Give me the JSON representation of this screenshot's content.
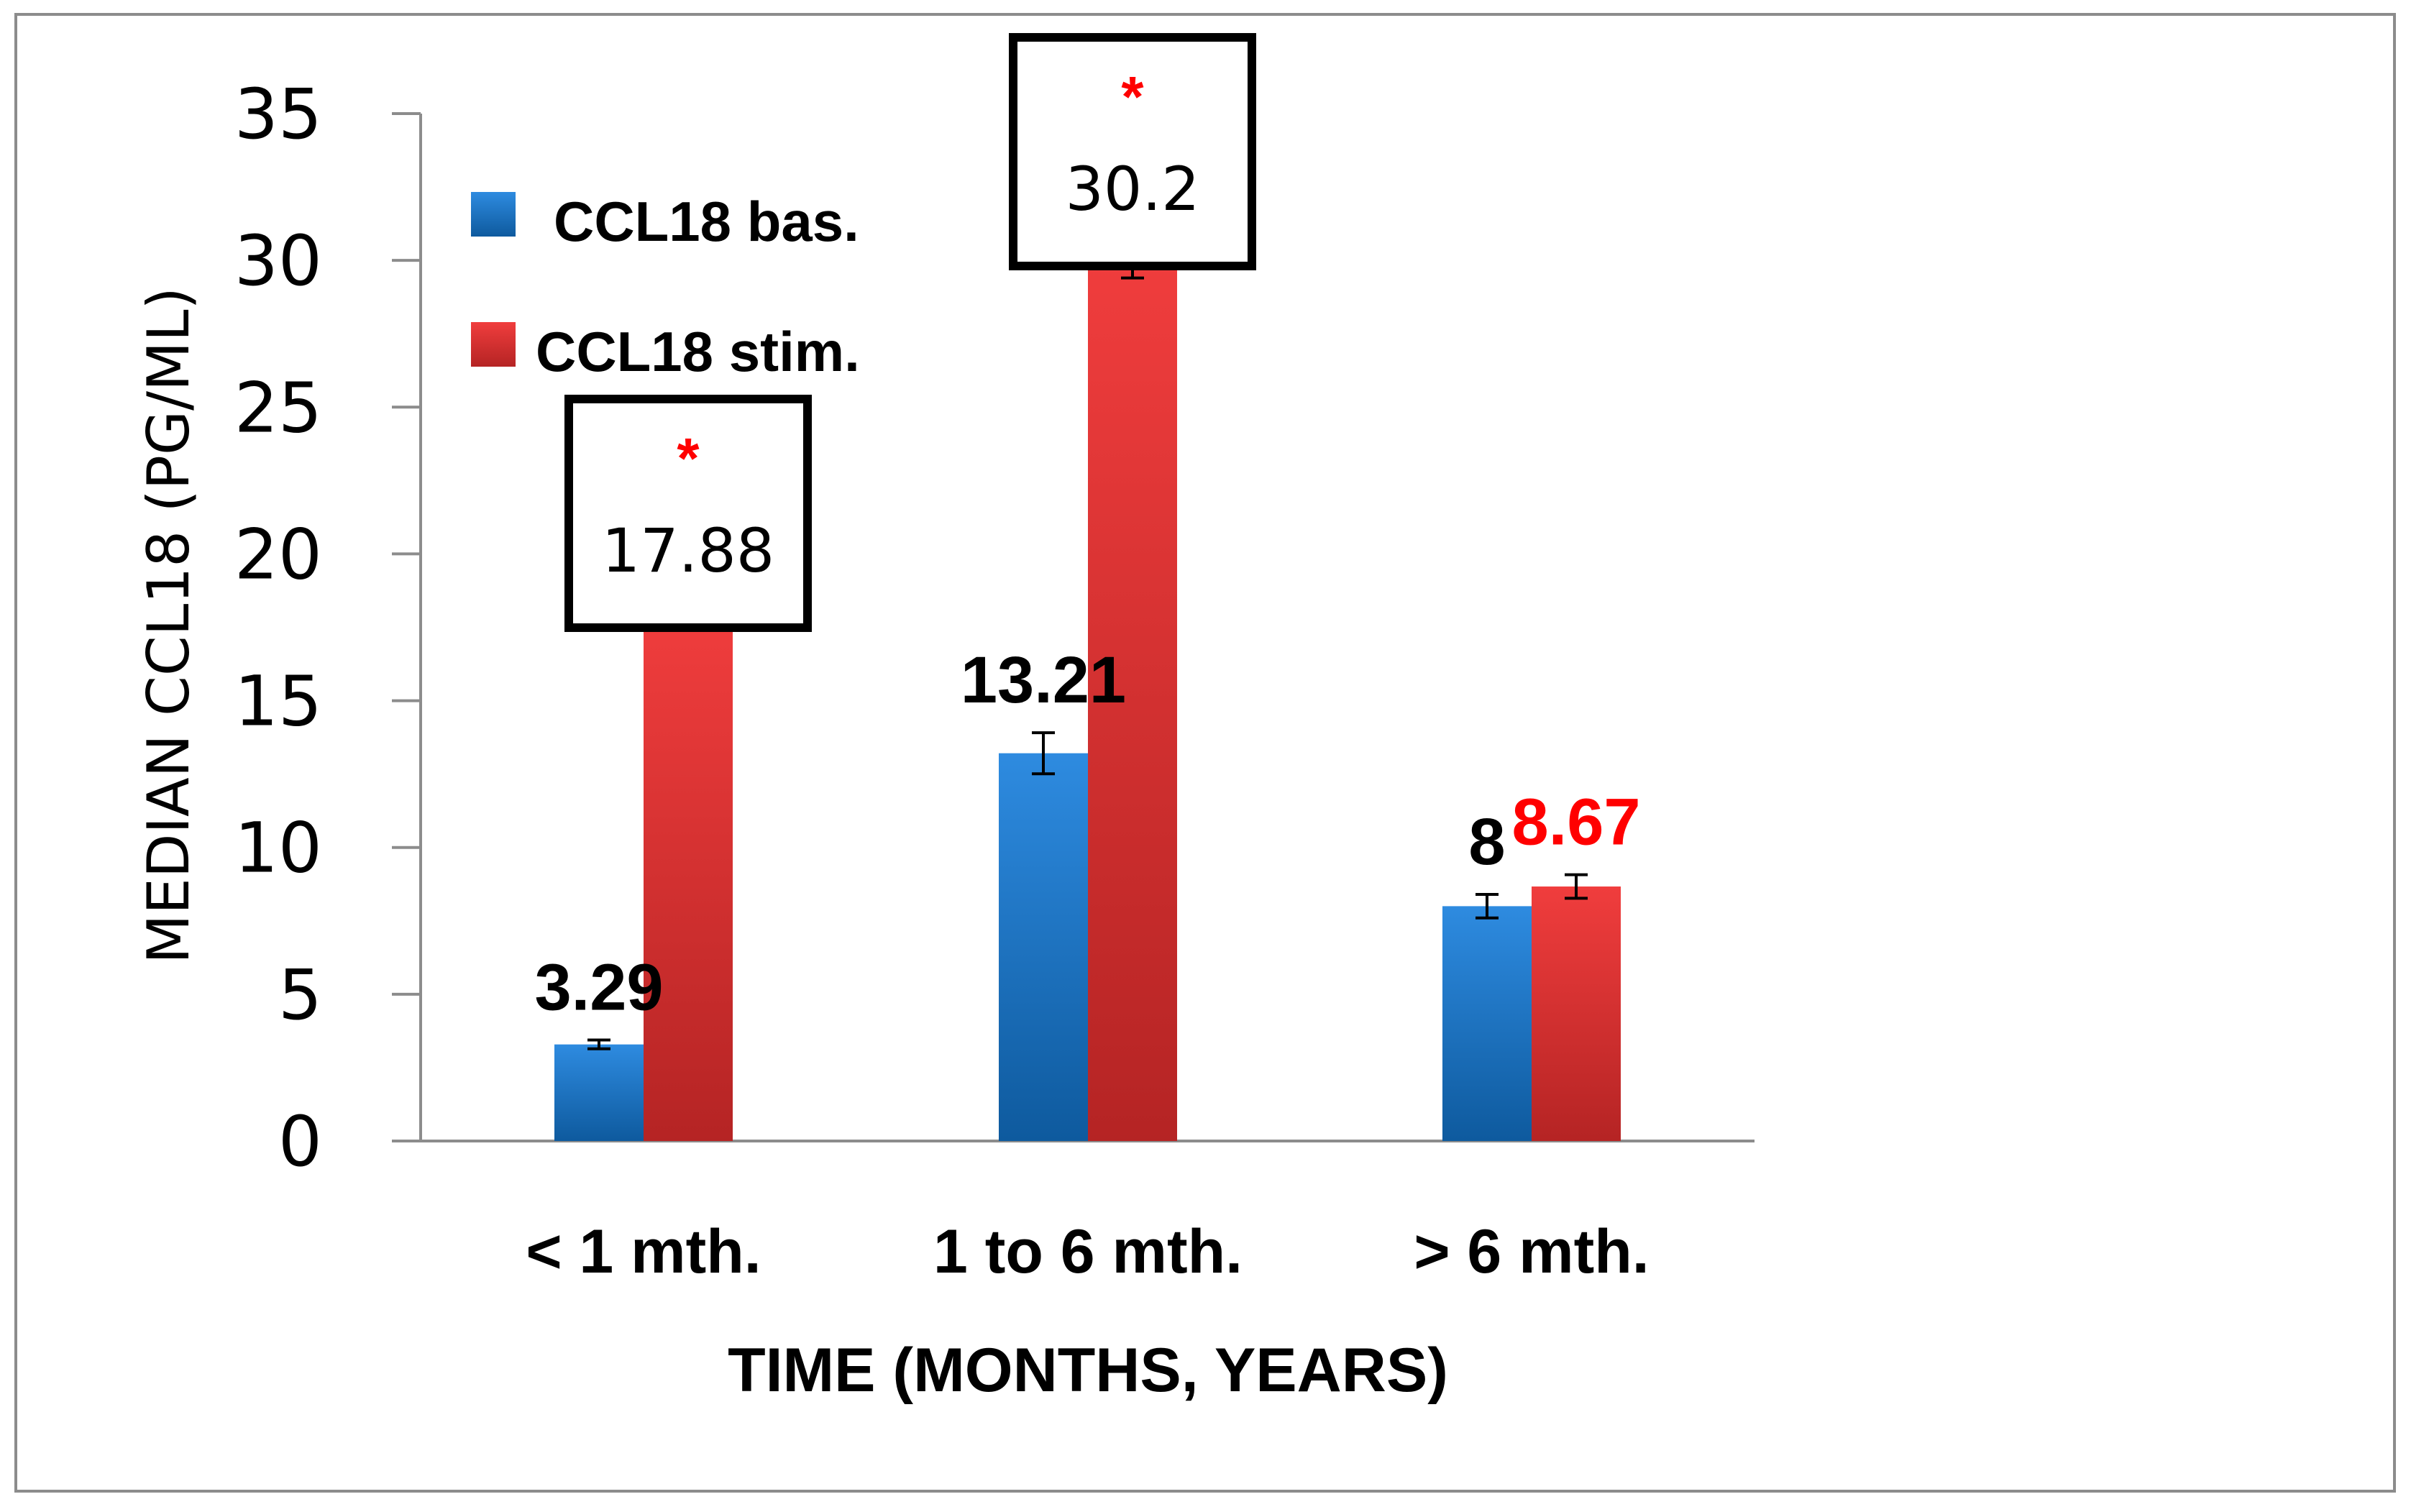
{
  "chart_data": {
    "type": "bar",
    "title": "",
    "xlabel": "TIME (MONTHS, YEARS)",
    "ylabel": "MEDIAN CCL18 (PG/ML)",
    "ylim": [
      0,
      35
    ],
    "yticks": [
      "0",
      "5",
      "10",
      "15",
      "20",
      "25",
      "30",
      "35"
    ],
    "ytick_values": [
      0,
      5,
      10,
      15,
      20,
      25,
      30,
      35
    ],
    "categories": [
      "< 1 mth.",
      "1 to 6 mth.",
      "> 6 mth."
    ],
    "series": [
      {
        "name": "CCL18  bas.",
        "values": [
          3.29,
          13.21,
          8
        ],
        "labels": [
          "3.29",
          "13.21",
          "8"
        ],
        "errors": [
          0.15,
          0.7,
          0.4
        ],
        "color_top": "#2e8be0",
        "color_bottom": "#0e5a9e",
        "label_color": "#000000"
      },
      {
        "name": "CCL18 stim.",
        "values": [
          17.88,
          30.2,
          8.67
        ],
        "labels": [
          "17.88",
          "30.2",
          "8.67"
        ],
        "errors": [
          0,
          0.8,
          0.4
        ],
        "color_top": "#f03d3d",
        "color_bottom": "#b52424",
        "label_color": "#ff0000"
      }
    ],
    "annotations": [
      {
        "category": 0,
        "series": 1,
        "marker": "*",
        "value": "17.88",
        "boxed": true
      },
      {
        "category": 1,
        "series": 1,
        "marker": "*",
        "value": "30.2",
        "boxed": true
      }
    ],
    "legend_position": "top-left",
    "grid": false
  }
}
